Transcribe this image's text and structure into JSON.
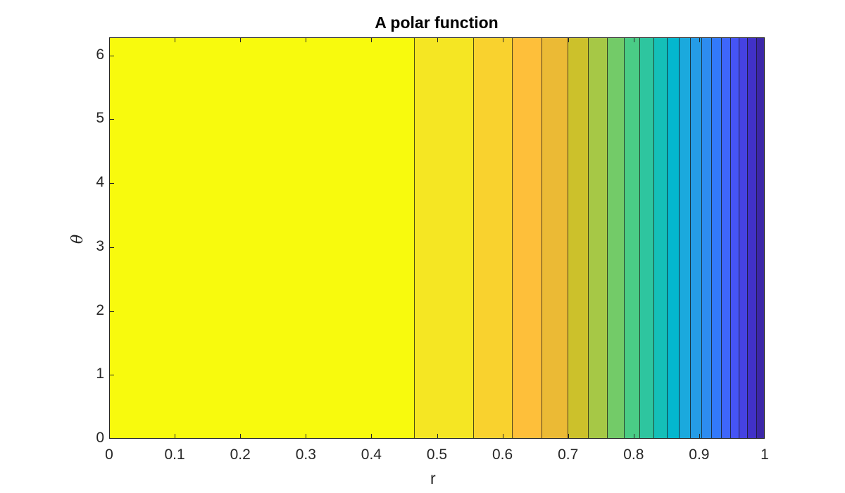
{
  "chart_data": {
    "type": "heatmap",
    "subtype": "filled-contour",
    "title": "A polar function",
    "xlabel": "r",
    "ylabel": "θ",
    "xlim": [
      0,
      1
    ],
    "ylim": [
      0,
      6.283
    ],
    "x_ticks": [
      "0",
      "0.1",
      "0.2",
      "0.3",
      "0.4",
      "0.5",
      "0.6",
      "0.7",
      "0.8",
      "0.9",
      "1"
    ],
    "y_ticks": [
      "0",
      "1",
      "2",
      "3",
      "4",
      "5",
      "6"
    ],
    "grid": false,
    "colormap": "parula",
    "description": "Filled contour plot; function depends only on r, producing vertical bands that narrow as r approaches 1. Colors go from yellow (high) at small r to dark blue (low) at r=1.",
    "bands": [
      {
        "r_start": 0.0,
        "r_end": 0.465,
        "color": "#F8FA0D"
      },
      {
        "r_start": 0.465,
        "r_end": 0.555,
        "color": "#F5E623"
      },
      {
        "r_start": 0.555,
        "r_end": 0.614,
        "color": "#F9D22E"
      },
      {
        "r_start": 0.614,
        "r_end": 0.66,
        "color": "#FEBF3A"
      },
      {
        "r_start": 0.66,
        "r_end": 0.699,
        "color": "#EBBA35"
      },
      {
        "r_start": 0.699,
        "r_end": 0.73,
        "color": "#CCC12B"
      },
      {
        "r_start": 0.73,
        "r_end": 0.759,
        "color": "#A6C846"
      },
      {
        "r_start": 0.759,
        "r_end": 0.785,
        "color": "#73CB68"
      },
      {
        "r_start": 0.785,
        "r_end": 0.809,
        "color": "#4ACC86"
      },
      {
        "r_start": 0.809,
        "r_end": 0.83,
        "color": "#2EC59F"
      },
      {
        "r_start": 0.83,
        "r_end": 0.851,
        "color": "#14BFB8"
      },
      {
        "r_start": 0.851,
        "r_end": 0.869,
        "color": "#04B7CE"
      },
      {
        "r_start": 0.869,
        "r_end": 0.886,
        "color": "#1BA9DD"
      },
      {
        "r_start": 0.886,
        "r_end": 0.903,
        "color": "#259CE6"
      },
      {
        "r_start": 0.903,
        "r_end": 0.918,
        "color": "#2D8CF0"
      },
      {
        "r_start": 0.918,
        "r_end": 0.933,
        "color": "#3279FA"
      },
      {
        "r_start": 0.933,
        "r_end": 0.947,
        "color": "#3E66FB"
      },
      {
        "r_start": 0.947,
        "r_end": 0.96,
        "color": "#4554F5"
      },
      {
        "r_start": 0.96,
        "r_end": 0.973,
        "color": "#4542E2"
      },
      {
        "r_start": 0.973,
        "r_end": 0.987,
        "color": "#4131C8"
      },
      {
        "r_start": 0.987,
        "r_end": 1.0,
        "color": "#3C27A7"
      }
    ]
  }
}
